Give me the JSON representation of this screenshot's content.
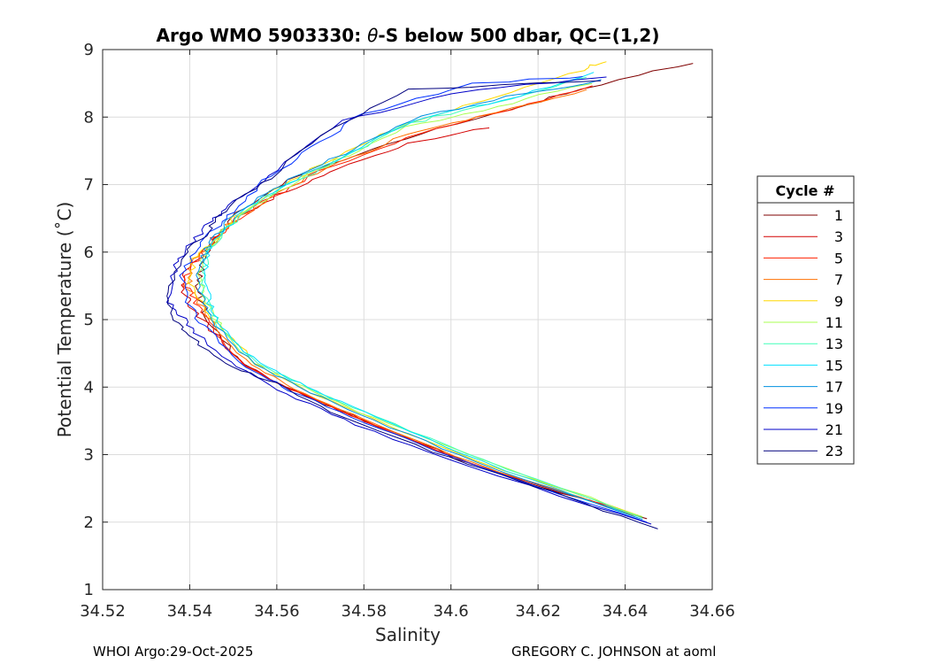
{
  "chart_data": {
    "type": "line",
    "title_prefix": "Argo WMO 5903330: ",
    "title_symbol": "θ",
    "title_suffix": "-S below 500 dbar,  QC=(1,2)",
    "xlabel": "Salinity",
    "ylabel": "Potential Temperature (˚C)",
    "xlim": [
      34.52,
      34.66
    ],
    "ylim": [
      1,
      9
    ],
    "xticks": [
      "34.52",
      "34.54",
      "34.56",
      "34.58",
      "34.6",
      "34.62",
      "34.64",
      "34.66"
    ],
    "yticks": [
      "1",
      "2",
      "3",
      "4",
      "5",
      "6",
      "7",
      "8",
      "9"
    ],
    "grid": true,
    "legend": {
      "title": "Cycle #",
      "position": "right-outside",
      "entries": [
        "1",
        "3",
        "5",
        "7",
        "9",
        "11",
        "13",
        "15",
        "17",
        "19",
        "21",
        "23"
      ],
      "colors": [
        "#7f0000",
        "#d40000",
        "#ff2000",
        "#ff7000",
        "#ffd800",
        "#a8ff50",
        "#40ffb8",
        "#00e0ff",
        "#0090e0",
        "#0030ff",
        "#0000c8",
        "#00007f"
      ]
    },
    "series": [
      {
        "name": "1",
        "color": "#7f0000",
        "s": [
          34.6555,
          34.63,
          34.61,
          34.585,
          34.565,
          34.552,
          34.546,
          34.543,
          34.542,
          34.5425,
          34.545,
          34.552,
          34.562,
          34.58,
          34.605,
          34.645
        ],
        "t": [
          8.8,
          8.42,
          8.05,
          7.6,
          7.15,
          6.65,
          6.25,
          5.9,
          5.6,
          5.3,
          4.9,
          4.35,
          4.0,
          3.5,
          2.85,
          2.05
        ]
      },
      {
        "name": "3",
        "color": "#d40000",
        "s": [
          34.609,
          34.59,
          34.575,
          34.562,
          34.552,
          34.546,
          34.543,
          34.539,
          34.5385,
          34.541,
          34.545,
          34.553,
          34.564,
          34.58,
          34.605,
          34.643
        ],
        "t": [
          7.85,
          7.6,
          7.25,
          6.9,
          6.55,
          6.25,
          5.95,
          5.7,
          5.4,
          5.15,
          4.85,
          4.3,
          3.95,
          3.5,
          2.85,
          2.1
        ]
      },
      {
        "name": "5",
        "color": "#ff2000",
        "s": [
          34.633,
          34.61,
          34.59,
          34.57,
          34.557,
          34.548,
          34.544,
          34.54,
          34.539,
          34.542,
          34.545,
          34.553,
          34.563,
          34.58,
          34.605,
          34.642
        ],
        "t": [
          8.45,
          8.05,
          7.7,
          7.2,
          6.75,
          6.35,
          6.05,
          5.8,
          5.5,
          5.2,
          4.9,
          4.32,
          3.98,
          3.5,
          2.85,
          2.12
        ]
      },
      {
        "name": "7",
        "color": "#ff7000",
        "s": [
          34.632,
          34.61,
          34.59,
          34.572,
          34.558,
          34.549,
          34.545,
          34.541,
          34.5395,
          34.5425,
          34.546,
          34.554,
          34.564,
          34.58,
          34.605,
          34.642
        ],
        "t": [
          8.4,
          8.07,
          7.75,
          7.25,
          6.8,
          6.4,
          6.1,
          5.85,
          5.5,
          5.2,
          4.9,
          4.33,
          3.98,
          3.52,
          2.88,
          2.1
        ]
      },
      {
        "name": "9",
        "color": "#ffd800",
        "s": [
          34.635,
          34.63,
          34.61,
          34.59,
          34.573,
          34.559,
          34.55,
          34.545,
          34.541,
          34.54,
          34.543,
          34.547,
          34.555,
          34.565,
          34.581,
          34.606,
          34.643
        ],
        "t": [
          8.82,
          8.7,
          8.3,
          7.9,
          7.4,
          6.9,
          6.5,
          6.15,
          5.9,
          5.55,
          5.2,
          4.9,
          4.35,
          4.0,
          3.55,
          2.9,
          2.1
        ]
      },
      {
        "name": "11",
        "color": "#a8ff50",
        "s": [
          34.632,
          34.61,
          34.59,
          34.574,
          34.56,
          34.551,
          34.546,
          34.543,
          34.542,
          34.5435,
          34.547,
          34.555,
          34.566,
          34.582,
          34.607,
          34.644
        ],
        "t": [
          8.5,
          8.15,
          7.85,
          7.35,
          6.9,
          6.5,
          6.2,
          5.95,
          5.6,
          5.25,
          4.9,
          4.35,
          4.0,
          3.55,
          2.92,
          2.08
        ]
      },
      {
        "name": "13",
        "color": "#40ffb8",
        "s": [
          34.631,
          34.61,
          34.59,
          34.575,
          34.561,
          34.552,
          34.547,
          34.544,
          34.5425,
          34.544,
          34.547,
          34.556,
          34.567,
          34.583,
          34.607,
          34.644
        ],
        "t": [
          8.6,
          8.2,
          7.9,
          7.4,
          6.95,
          6.55,
          6.25,
          5.95,
          5.6,
          5.25,
          4.9,
          4.35,
          4.0,
          3.56,
          2.92,
          2.06
        ]
      },
      {
        "name": "15",
        "color": "#00e0ff",
        "s": [
          34.633,
          34.612,
          34.591,
          34.576,
          34.562,
          34.552,
          34.547,
          34.544,
          34.543,
          34.5445,
          34.547,
          34.556,
          34.567,
          34.583,
          34.607,
          34.643
        ],
        "t": [
          8.65,
          8.25,
          7.95,
          7.45,
          7.0,
          6.6,
          6.25,
          5.95,
          5.6,
          5.25,
          4.9,
          4.35,
          4.0,
          3.56,
          2.9,
          2.06
        ]
      },
      {
        "name": "17",
        "color": "#0090e0",
        "s": [
          34.635,
          34.613,
          34.59,
          34.575,
          34.561,
          34.551,
          34.546,
          34.543,
          34.5415,
          34.543,
          34.546,
          34.555,
          34.565,
          34.582,
          34.606,
          34.644
        ],
        "t": [
          8.55,
          8.3,
          7.95,
          7.45,
          7.0,
          6.6,
          6.25,
          5.95,
          5.6,
          5.25,
          4.9,
          4.35,
          4.0,
          3.52,
          2.88,
          2.04
        ]
      },
      {
        "name": "19",
        "color": "#0030ff",
        "s": [
          34.631,
          34.605,
          34.58,
          34.568,
          34.557,
          34.55,
          34.545,
          34.541,
          34.538,
          34.54,
          34.544,
          34.553,
          34.563,
          34.58,
          34.605,
          34.645
        ],
        "t": [
          8.6,
          8.5,
          8.05,
          7.55,
          7.05,
          6.6,
          6.3,
          6.0,
          5.6,
          5.2,
          4.85,
          4.3,
          3.95,
          3.48,
          2.84,
          2.0
        ]
      },
      {
        "name": "21",
        "color": "#0000c8",
        "s": [
          34.635,
          34.6,
          34.575,
          34.56,
          34.55,
          34.545,
          34.54,
          34.537,
          34.535,
          34.538,
          34.541,
          34.551,
          34.562,
          34.578,
          34.604,
          34.646
        ],
        "t": [
          8.6,
          8.35,
          7.95,
          7.2,
          6.75,
          6.45,
          6.1,
          5.8,
          5.3,
          5.05,
          4.8,
          4.3,
          3.9,
          3.45,
          2.82,
          1.97
        ]
      },
      {
        "name": "23",
        "color": "#00007f",
        "s": [
          34.634,
          34.59,
          34.573,
          34.558,
          34.548,
          34.544,
          34.539,
          34.535,
          34.536,
          34.54,
          34.548,
          34.56,
          34.575,
          34.6,
          34.623,
          34.6475
        ],
        "t": [
          8.55,
          8.4,
          7.85,
          7.1,
          6.6,
          6.3,
          6.0,
          5.4,
          5.05,
          4.75,
          4.35,
          4.05,
          3.55,
          2.95,
          2.45,
          1.9
        ]
      }
    ]
  },
  "footer": {
    "left": "WHOI Argo:29-Oct-2025",
    "right": "GREGORY C. JOHNSON at aoml"
  }
}
